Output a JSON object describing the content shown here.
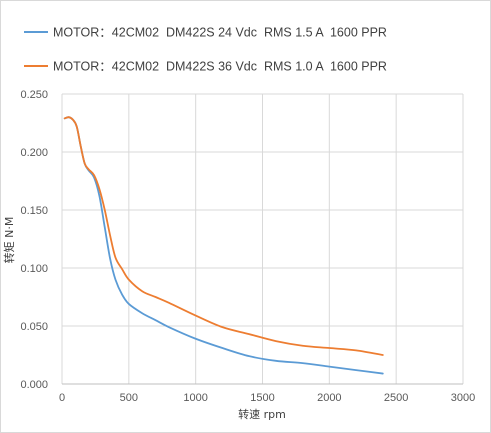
{
  "chart_data": {
    "type": "line",
    "title": "",
    "xlabel": "转速 rpm",
    "ylabel": "转矩 N·M",
    "xlim": [
      0,
      3000
    ],
    "ylim": [
      0,
      0.25
    ],
    "x_ticks": [
      "0",
      "500",
      "1000",
      "1500",
      "2000",
      "2500",
      "3000"
    ],
    "y_ticks": [
      "0.000",
      "0.050",
      "0.100",
      "0.150",
      "0.200",
      "0.250"
    ],
    "grid": "both",
    "legend_position": "top",
    "series": [
      {
        "name": "MOTOR：42CM02  DM422S 24 Vdc  RMS 1.5 A  1600 PPR",
        "color": "#5b9bd5",
        "x": [
          20,
          50,
          80,
          110,
          140,
          170,
          200,
          240,
          280,
          320,
          360,
          400,
          450,
          500,
          600,
          700,
          800,
          1000,
          1200,
          1400,
          1600,
          1800,
          2000,
          2200,
          2400
        ],
        "y": [
          0.229,
          0.23,
          0.228,
          0.222,
          0.205,
          0.19,
          0.184,
          0.178,
          0.162,
          0.135,
          0.108,
          0.09,
          0.077,
          0.069,
          0.061,
          0.055,
          0.049,
          0.039,
          0.031,
          0.024,
          0.02,
          0.018,
          0.015,
          0.012,
          0.009
        ]
      },
      {
        "name": "MOTOR：42CM02  DM422S 36 Vdc  RMS 1.0 A  1600 PPR",
        "color": "#ed7d31",
        "x": [
          20,
          50,
          80,
          110,
          140,
          170,
          200,
          240,
          280,
          320,
          360,
          400,
          450,
          500,
          600,
          700,
          800,
          1000,
          1200,
          1400,
          1600,
          1800,
          2000,
          2200,
          2400
        ],
        "y": [
          0.229,
          0.23,
          0.228,
          0.222,
          0.205,
          0.19,
          0.185,
          0.18,
          0.168,
          0.15,
          0.128,
          0.109,
          0.099,
          0.09,
          0.08,
          0.075,
          0.07,
          0.059,
          0.049,
          0.043,
          0.037,
          0.033,
          0.031,
          0.029,
          0.025
        ]
      }
    ]
  }
}
